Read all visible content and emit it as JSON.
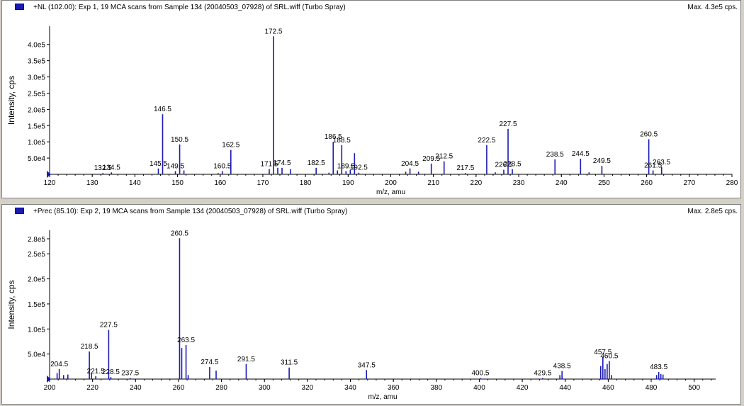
{
  "window": {
    "panes": [
      {
        "title": "+NL (102.00): Exp 1, 19 MCA scans from Sample 134 (20040503_07928) of SRL.wiff (Turbo Spray)",
        "max_label": "Max. 4.3e5 cps."
      },
      {
        "title": "+Prec (85.10): Exp 2, 19 MCA scans from Sample 134 (20040503_07928) of SRL.wiff (Turbo Spray)",
        "max_label": "Max. 2.8e5 cps."
      }
    ]
  },
  "colors": {
    "peak": "#1a1ab4",
    "marker": "#1a1ab4",
    "axis": "#000000"
  },
  "chart_data": [
    {
      "type": "bar",
      "title": "+NL (102.00): Exp 1, 19 MCA scans from Sample 134 (20040503_07928) of SRL.wiff (Turbo Spray)",
      "xlabel": "m/z, amu",
      "ylabel": "Intensity, cps",
      "xlim": [
        120,
        280
      ],
      "ylim": [
        0,
        430000
      ],
      "xticks": [
        120,
        130,
        140,
        150,
        160,
        170,
        180,
        190,
        200,
        210,
        220,
        230,
        240,
        250,
        260,
        270,
        280
      ],
      "xtick_labels": [
        "120",
        "130",
        "140",
        "150",
        "160",
        "170",
        "180",
        "190",
        "200",
        "210",
        "220",
        "230",
        "240",
        "250",
        "260",
        "270",
        "280"
      ],
      "yticks": [
        50000,
        100000,
        150000,
        200000,
        250000,
        300000,
        350000,
        400000
      ],
      "ytick_labels": [
        "5.0e4",
        "1.0e5",
        "1.5e5",
        "2.0e5",
        "2.5e5",
        "3.0e5",
        "3.5e5",
        "4.0e5"
      ],
      "peaks": [
        {
          "mz": 132.5,
          "intensity": 4000,
          "label": "132.5"
        },
        {
          "mz": 134.5,
          "intensity": 6000,
          "label": "134.5"
        },
        {
          "mz": 145.5,
          "intensity": 18000,
          "label": "145.5"
        },
        {
          "mz": 146.5,
          "intensity": 185000,
          "label": "146.5"
        },
        {
          "mz": 149.5,
          "intensity": 10000,
          "label": "149.5"
        },
        {
          "mz": 150.5,
          "intensity": 92000,
          "label": "150.5"
        },
        {
          "mz": 151.5,
          "intensity": 12000,
          "label": ""
        },
        {
          "mz": 159.5,
          "intensity": 4000,
          "label": ""
        },
        {
          "mz": 160.5,
          "intensity": 10000,
          "label": "160.5"
        },
        {
          "mz": 162.5,
          "intensity": 75000,
          "label": "162.5"
        },
        {
          "mz": 171.5,
          "intensity": 16000,
          "label": "171.5"
        },
        {
          "mz": 172.5,
          "intensity": 425000,
          "label": "172.5"
        },
        {
          "mz": 173.5,
          "intensity": 20000,
          "label": ""
        },
        {
          "mz": 174.5,
          "intensity": 20000,
          "label": "174.5"
        },
        {
          "mz": 176.5,
          "intensity": 16000,
          "label": ""
        },
        {
          "mz": 182.5,
          "intensity": 20000,
          "label": "182.5"
        },
        {
          "mz": 185.5,
          "intensity": 5000,
          "label": ""
        },
        {
          "mz": 186.5,
          "intensity": 100000,
          "label": "186.5"
        },
        {
          "mz": 187.5,
          "intensity": 12000,
          "label": ""
        },
        {
          "mz": 188.5,
          "intensity": 90000,
          "label": "188.5"
        },
        {
          "mz": 189.5,
          "intensity": 10000,
          "label": "189.5"
        },
        {
          "mz": 190.5,
          "intensity": 14000,
          "label": ""
        },
        {
          "mz": 191.5,
          "intensity": 65000,
          "label": ""
        },
        {
          "mz": 192.5,
          "intensity": 5000,
          "label": "192.5"
        },
        {
          "mz": 203.5,
          "intensity": 8000,
          "label": ""
        },
        {
          "mz": 204.5,
          "intensity": 18000,
          "label": "204.5"
        },
        {
          "mz": 206.5,
          "intensity": 8000,
          "label": ""
        },
        {
          "mz": 209.5,
          "intensity": 33000,
          "label": "209.5"
        },
        {
          "mz": 212.5,
          "intensity": 40000,
          "label": "212.5"
        },
        {
          "mz": 217.5,
          "intensity": 4000,
          "label": "217.5"
        },
        {
          "mz": 222.5,
          "intensity": 90000,
          "label": "222.5"
        },
        {
          "mz": 224.5,
          "intensity": 6000,
          "label": ""
        },
        {
          "mz": 226.5,
          "intensity": 14000,
          "label": "226.5"
        },
        {
          "mz": 227.5,
          "intensity": 140000,
          "label": "227.5"
        },
        {
          "mz": 228.5,
          "intensity": 16000,
          "label": "228.5"
        },
        {
          "mz": 238.5,
          "intensity": 46000,
          "label": "238.5"
        },
        {
          "mz": 244.5,
          "intensity": 48000,
          "label": "244.5"
        },
        {
          "mz": 246.5,
          "intensity": 6000,
          "label": ""
        },
        {
          "mz": 249.5,
          "intensity": 26000,
          "label": "249.5"
        },
        {
          "mz": 260.5,
          "intensity": 108000,
          "label": "260.5"
        },
        {
          "mz": 261.5,
          "intensity": 12000,
          "label": "261.5"
        },
        {
          "mz": 263.5,
          "intensity": 22000,
          "label": "263.5"
        }
      ]
    },
    {
      "type": "bar",
      "title": "+Prec (85.10): Exp 2, 19 MCA scans from Sample 134 (20040503_07928) of SRL.wiff (Turbo Spray)",
      "xlabel": "m/z, amu",
      "ylabel": "Intensity, cps",
      "xlim": [
        200,
        510
      ],
      "ylim": [
        0,
        280000
      ],
      "xticks": [
        200,
        220,
        240,
        260,
        280,
        300,
        320,
        340,
        360,
        380,
        400,
        420,
        440,
        460,
        480,
        500
      ],
      "xtick_labels": [
        "200",
        "220",
        "240",
        "260",
        "280",
        "300",
        "320",
        "340",
        "360",
        "380",
        "400",
        "420",
        "440",
        "460",
        "480",
        "500"
      ],
      "yticks": [
        50000,
        100000,
        150000,
        200000,
        250000
      ],
      "ytick_labels": [
        "5.0e4",
        "1.0e5",
        "1.5e5",
        "2.0e5",
        "2.5e5",
        "2.8e5"
      ],
      "extra_top_tick": 280000,
      "peaks": [
        {
          "mz": 203.5,
          "intensity": 12000,
          "label": ""
        },
        {
          "mz": 204.5,
          "intensity": 20000,
          "label": "204.5"
        },
        {
          "mz": 206.5,
          "intensity": 8000,
          "label": ""
        },
        {
          "mz": 208.5,
          "intensity": 9000,
          "label": ""
        },
        {
          "mz": 218.5,
          "intensity": 55000,
          "label": "218.5"
        },
        {
          "mz": 219.5,
          "intensity": 12000,
          "label": ""
        },
        {
          "mz": 221.5,
          "intensity": 6000,
          "label": "221.5"
        },
        {
          "mz": 227.5,
          "intensity": 98000,
          "label": "227.5"
        },
        {
          "mz": 228.5,
          "intensity": 4000,
          "label": "228.5"
        },
        {
          "mz": 237.5,
          "intensity": 2000,
          "label": "237.5"
        },
        {
          "mz": 260.5,
          "intensity": 281000,
          "label": "260.5"
        },
        {
          "mz": 261.5,
          "intensity": 62000,
          "label": ""
        },
        {
          "mz": 263.5,
          "intensity": 68000,
          "label": "263.5"
        },
        {
          "mz": 264.5,
          "intensity": 8000,
          "label": ""
        },
        {
          "mz": 274.5,
          "intensity": 24000,
          "label": "274.5"
        },
        {
          "mz": 277.5,
          "intensity": 17000,
          "label": ""
        },
        {
          "mz": 291.5,
          "intensity": 30000,
          "label": "291.5"
        },
        {
          "mz": 311.5,
          "intensity": 23000,
          "label": "311.5"
        },
        {
          "mz": 347.5,
          "intensity": 18000,
          "label": "347.5"
        },
        {
          "mz": 400.5,
          "intensity": 2000,
          "label": "400.5"
        },
        {
          "mz": 429.5,
          "intensity": 2000,
          "label": "429.5"
        },
        {
          "mz": 437.5,
          "intensity": 8000,
          "label": ""
        },
        {
          "mz": 438.5,
          "intensity": 16000,
          "label": "438.5"
        },
        {
          "mz": 456.5,
          "intensity": 26000,
          "label": ""
        },
        {
          "mz": 457.5,
          "intensity": 44000,
          "label": "457.5"
        },
        {
          "mz": 458.5,
          "intensity": 20000,
          "label": ""
        },
        {
          "mz": 459.5,
          "intensity": 30000,
          "label": ""
        },
        {
          "mz": 460.5,
          "intensity": 36000,
          "label": "460.5"
        },
        {
          "mz": 461.5,
          "intensity": 8000,
          "label": ""
        },
        {
          "mz": 482.5,
          "intensity": 8000,
          "label": ""
        },
        {
          "mz": 483.5,
          "intensity": 14000,
          "label": "483.5"
        },
        {
          "mz": 484.5,
          "intensity": 10000,
          "label": ""
        },
        {
          "mz": 485.5,
          "intensity": 9000,
          "label": ""
        }
      ]
    }
  ]
}
